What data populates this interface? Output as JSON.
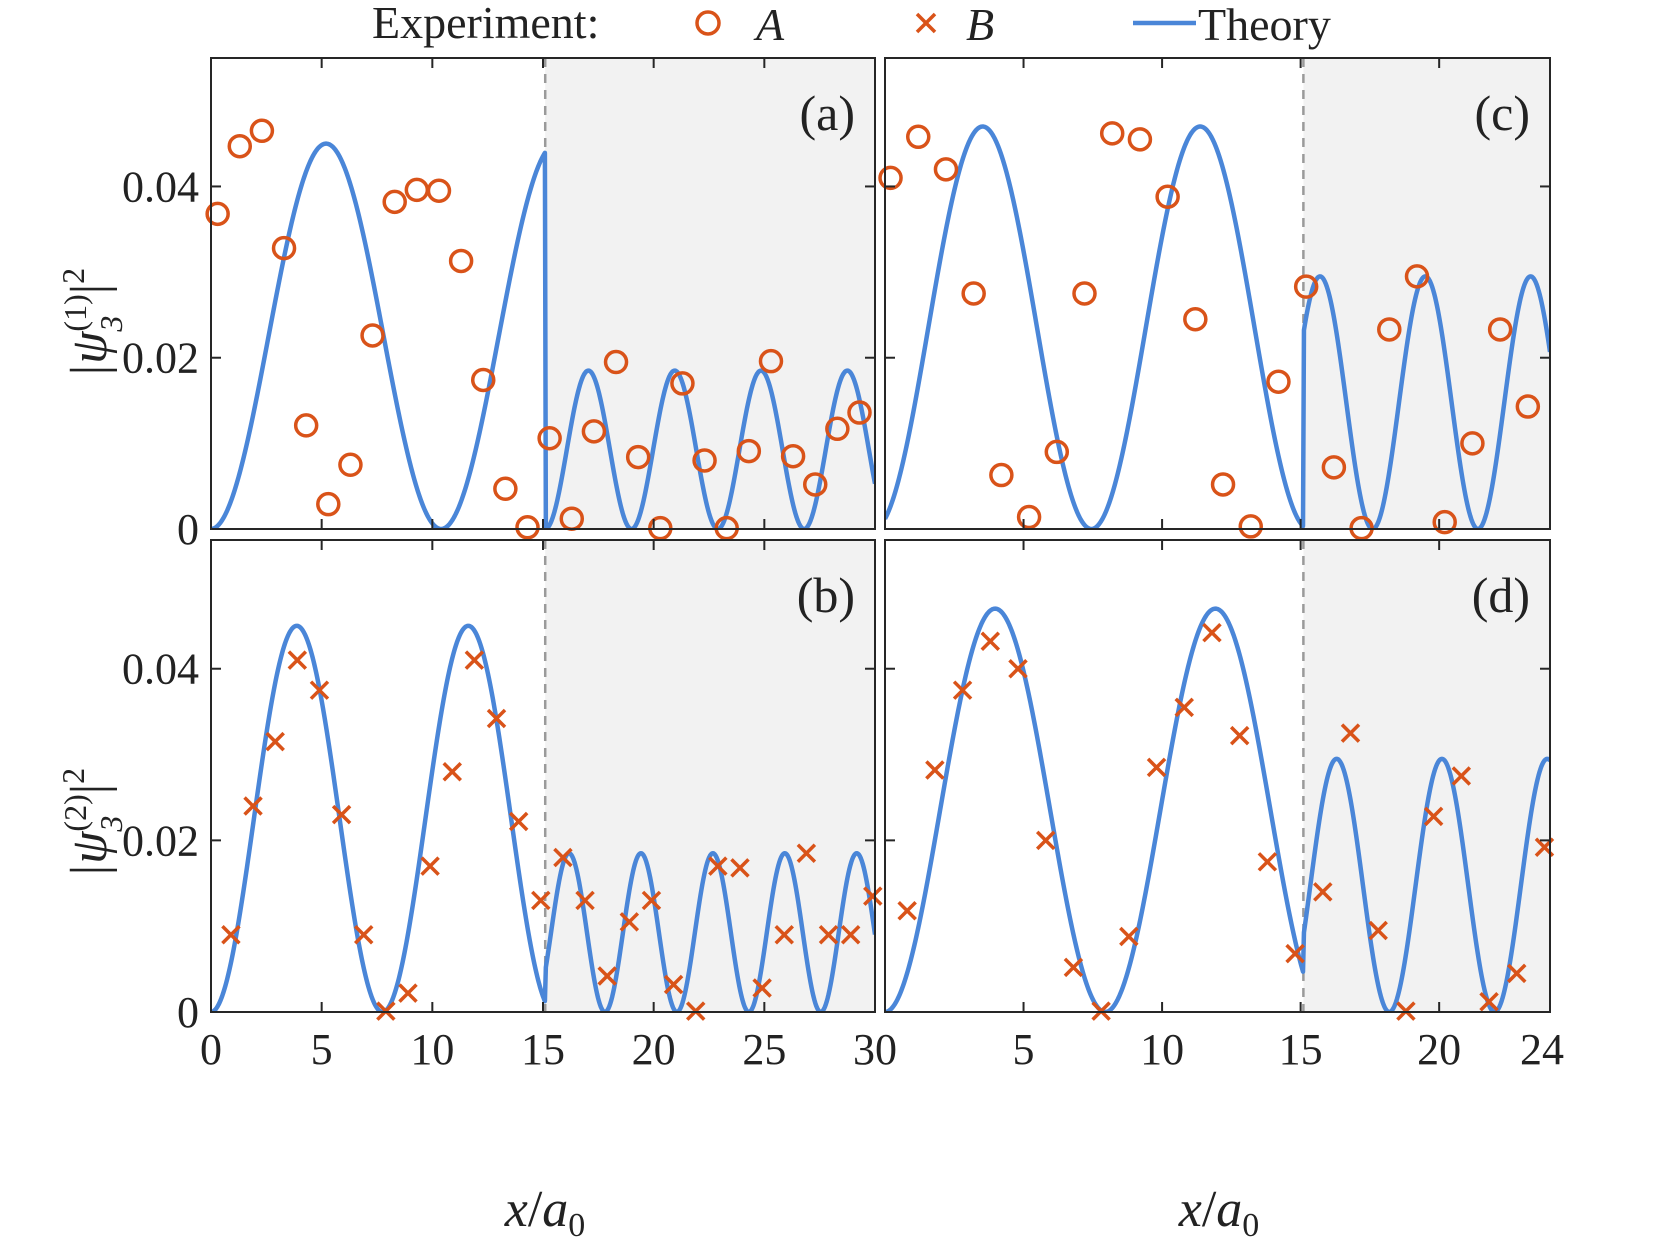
{
  "legend": {
    "title": "Experiment:",
    "entries": [
      {
        "label": "A",
        "marker": "circle"
      },
      {
        "label": "B",
        "marker": "cross"
      },
      {
        "label": "Theory",
        "marker": "line"
      }
    ]
  },
  "colors": {
    "theory": "#4a86d8",
    "experiment": "#d95319",
    "shade": "#f2f2f2",
    "divider": "#9a9a9a",
    "axis": "#262626"
  },
  "ylabels": {
    "top": {
      "prefix": "|ψ",
      "sub": "3",
      "sup": "(1)",
      "suffix": "|",
      "power": "2"
    },
    "bottom": {
      "prefix": "|ψ",
      "sub": "3",
      "sup": "(2)",
      "suffix": "|",
      "power": "2"
    }
  },
  "xlabels": {
    "left": {
      "var": "x",
      "slash": "/",
      "den": "a",
      "sub": "0"
    },
    "right": {
      "var": "x",
      "slash": "/",
      "den": "a",
      "sub": "0"
    }
  },
  "chart_data": [
    {
      "id": "a",
      "panel_label": "(a)",
      "type": "line+scatter",
      "xlim": [
        0,
        30
      ],
      "ylim": [
        0,
        0.055
      ],
      "divider_x": 15.1,
      "xticks": [
        0,
        5,
        10,
        15,
        20,
        25,
        30
      ],
      "yticks": [
        {
          "value": 0,
          "label": "0"
        },
        {
          "value": 0.02,
          "label": "0.02"
        },
        {
          "value": 0.04,
          "label": "0.04"
        }
      ],
      "theory": {
        "amp1": 0.045,
        "width1": 10.4,
        "amp2": 0.0185,
        "start2": 15.1,
        "width2": 3.9,
        "xmax": 30
      },
      "marker": "circle",
      "marker_label": "A",
      "x": [
        0.3,
        1.3,
        2.3,
        3.3,
        4.3,
        5.3,
        6.3,
        7.3,
        8.3,
        9.3,
        10.3,
        11.3,
        12.3,
        13.3,
        14.3,
        15.3,
        16.3,
        17.3,
        18.3,
        19.3,
        20.3,
        21.3,
        22.3,
        23.3,
        24.3,
        25.3,
        26.3,
        27.3,
        28.3,
        29.3
      ],
      "y": [
        0.0368,
        0.0447,
        0.0465,
        0.0328,
        0.0121,
        0.0029,
        0.0075,
        0.0226,
        0.0382,
        0.0396,
        0.0395,
        0.0313,
        0.0174,
        0.0047,
        0.0002,
        0.0106,
        0.0012,
        0.0114,
        0.0195,
        0.0084,
        0.0001,
        0.017,
        0.008,
        0.0001,
        0.0091,
        0.0196,
        0.0085,
        0.0052,
        0.0117,
        0.0136
      ]
    },
    {
      "id": "b",
      "panel_label": "(b)",
      "type": "line+scatter",
      "xlim": [
        0,
        30
      ],
      "ylim": [
        0,
        0.055
      ],
      "divider_x": 15.1,
      "xticks": [
        0,
        5,
        10,
        15,
        20,
        25,
        30
      ],
      "yticks": [
        {
          "value": 0,
          "label": "0"
        },
        {
          "value": 0.02,
          "label": "0.02"
        },
        {
          "value": 0.04,
          "label": "0.04"
        }
      ],
      "theory": {
        "amp1": 0.045,
        "width1": 7.75,
        "amp2": 0.0185,
        "start2": 15.1,
        "width2": 3.25,
        "offset2": 0.55,
        "xmax": 30
      },
      "marker": "cross",
      "marker_label": "B",
      "x": [
        0.9,
        1.9,
        2.9,
        3.9,
        4.9,
        5.9,
        6.9,
        7.9,
        8.9,
        9.9,
        10.9,
        11.9,
        12.9,
        13.9,
        14.9,
        15.9,
        16.9,
        17.9,
        18.9,
        19.9,
        20.9,
        21.9,
        22.9,
        23.9,
        24.9,
        25.9,
        26.9,
        27.9,
        28.9,
        29.9
      ],
      "y": [
        0.009,
        0.024,
        0.0315,
        0.041,
        0.0375,
        0.023,
        0.009,
        0.0001,
        0.0022,
        0.017,
        0.028,
        0.041,
        0.0342,
        0.0222,
        0.013,
        0.018,
        0.013,
        0.0042,
        0.0105,
        0.013,
        0.0032,
        0.0001,
        0.017,
        0.0168,
        0.0028,
        0.009,
        0.0185,
        0.009,
        0.009,
        0.0135
      ]
    },
    {
      "id": "c",
      "panel_label": "(c)",
      "type": "line+scatter",
      "xlim": [
        0,
        24
      ],
      "ylim": [
        0,
        0.055
      ],
      "divider_x": 15.1,
      "xticks": [
        5,
        10,
        15,
        20,
        24
      ],
      "yticks": [
        {
          "value": 0,
          "label": "0"
        },
        {
          "value": 0.02,
          "label": "0.02"
        },
        {
          "value": 0.04,
          "label": "0.04"
        }
      ],
      "theory": {
        "amp1": 0.047,
        "width1": 7.85,
        "offset1": 0.4,
        "amp2": 0.0295,
        "start2": 15.1,
        "width2": 3.8,
        "offset2": 1.3,
        "xmax": 24
      },
      "marker": "circle",
      "marker_label": "A",
      "x": [
        0.2,
        1.2,
        2.2,
        3.2,
        4.2,
        5.2,
        6.2,
        7.2,
        8.2,
        9.2,
        10.2,
        11.2,
        12.2,
        13.2,
        14.2,
        15.2,
        16.2,
        17.2,
        18.2,
        19.2,
        20.2,
        21.2,
        22.2,
        23.2
      ],
      "y": [
        0.041,
        0.0458,
        0.042,
        0.0275,
        0.0063,
        0.0014,
        0.009,
        0.0275,
        0.0462,
        0.0455,
        0.0388,
        0.0245,
        0.0052,
        0.0003,
        0.0172,
        0.0283,
        0.0072,
        0.0001,
        0.0233,
        0.0295,
        0.0008,
        0.01,
        0.0233,
        0.0143
      ]
    },
    {
      "id": "d",
      "panel_label": "(d)",
      "type": "line+scatter",
      "xlim": [
        0,
        24
      ],
      "ylim": [
        0,
        0.055
      ],
      "divider_x": 15.1,
      "xticks": [
        5,
        10,
        15,
        20,
        24
      ],
      "yticks": [
        {
          "value": 0,
          "label": "0"
        },
        {
          "value": 0.02,
          "label": "0.02"
        },
        {
          "value": 0.04,
          "label": "0.04"
        }
      ],
      "theory": {
        "amp1": 0.047,
        "width1": 7.95,
        "amp2": 0.0295,
        "start2": 15.1,
        "width2": 3.8,
        "offset2": 0.7,
        "xmax": 24
      },
      "marker": "cross",
      "marker_label": "B",
      "x": [
        0.8,
        1.8,
        2.8,
        3.8,
        4.8,
        5.8,
        6.8,
        7.8,
        8.8,
        9.8,
        10.8,
        11.8,
        12.8,
        13.8,
        14.8,
        15.8,
        16.8,
        17.8,
        18.8,
        19.8,
        20.8,
        21.8,
        22.8,
        23.8
      ],
      "y": [
        0.0118,
        0.0282,
        0.0375,
        0.0432,
        0.04,
        0.02,
        0.0052,
        0.0001,
        0.0088,
        0.0285,
        0.0355,
        0.0442,
        0.0322,
        0.0175,
        0.0068,
        0.014,
        0.0325,
        0.0095,
        0.0001,
        0.0228,
        0.0275,
        0.0012,
        0.0045,
        0.0192
      ]
    }
  ]
}
